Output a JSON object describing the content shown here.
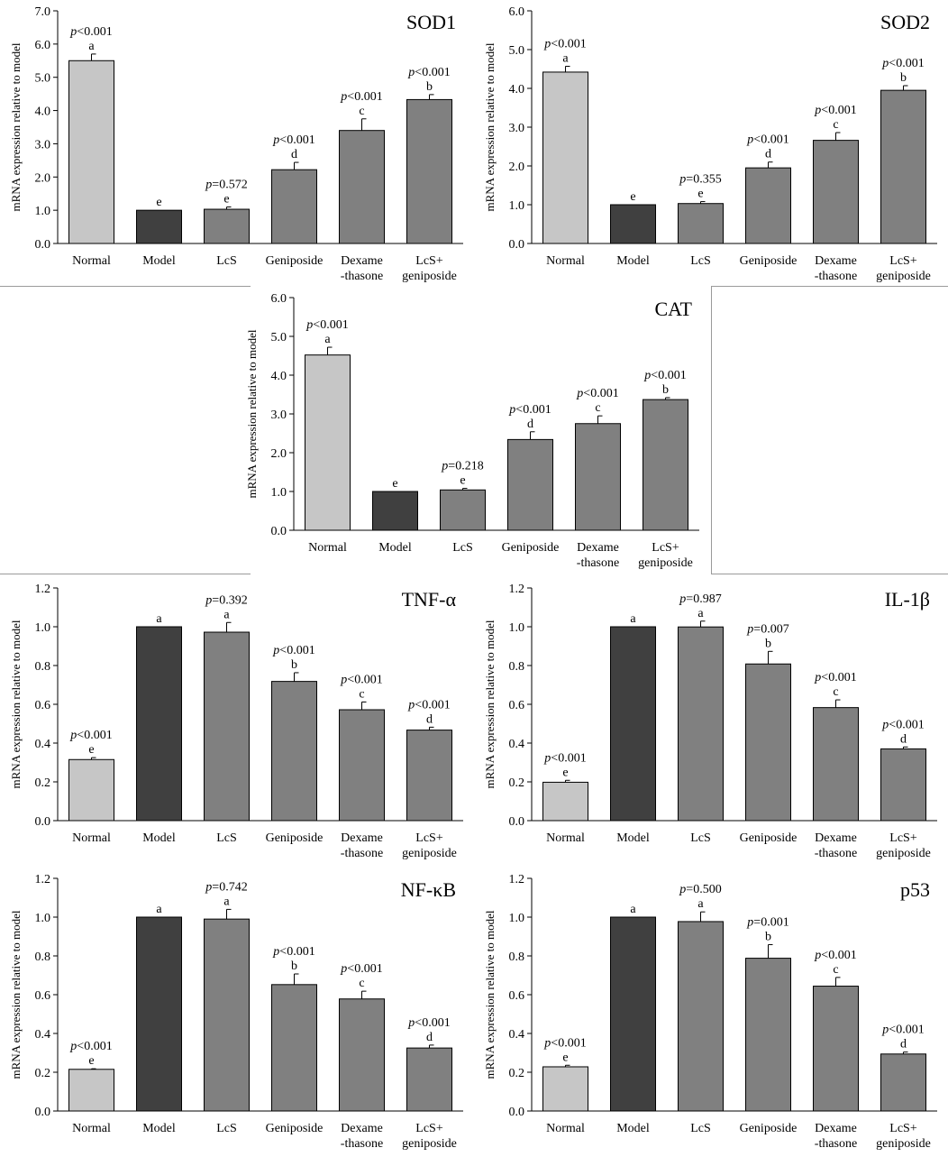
{
  "figure": {
    "categories_line1": [
      "Normal",
      "Model",
      "LcS",
      "Geniposide",
      "Dexame",
      "LcS+"
    ],
    "categories_line2": [
      "",
      "",
      "",
      "",
      "-thasone",
      "geniposide"
    ],
    "ylabel": "mRNA expression relative to model",
    "bar_colors": [
      "#c6c6c6",
      "#404040",
      "#808080",
      "#808080",
      "#808080",
      "#808080"
    ]
  },
  "chart_data": [
    {
      "type": "bar",
      "title": "SOD1",
      "ylabel": "mRNA expression relative to model",
      "categories": [
        "Normal",
        "Model",
        "LcS",
        "Geniposide",
        "Dexame -thasone",
        "LcS+ geniposide"
      ],
      "ylim": [
        0,
        7.0
      ],
      "ticks": [
        "0.0",
        "1.0",
        "2.0",
        "3.0",
        "4.0",
        "5.0",
        "6.0",
        "7.0"
      ],
      "values": [
        5.5,
        1.0,
        1.03,
        2.22,
        3.4,
        4.33
      ],
      "errors": [
        0.2,
        0.0,
        0.07,
        0.22,
        0.35,
        0.15
      ],
      "letters": [
        "a",
        "e",
        "e",
        "d",
        "c",
        "b"
      ],
      "pvalues": [
        "<0.001",
        "",
        "=0.572",
        "<0.001",
        "<0.001",
        "<0.001"
      ]
    },
    {
      "type": "bar",
      "title": "SOD2",
      "ylabel": "mRNA expression relative to model",
      "categories": [
        "Normal",
        "Model",
        "LcS",
        "Geniposide",
        "Dexame -thasone",
        "LcS+ geniposide"
      ],
      "ylim": [
        0,
        6.0
      ],
      "ticks": [
        "0.0",
        "1.0",
        "2.0",
        "3.0",
        "4.0",
        "5.0",
        "6.0"
      ],
      "values": [
        4.42,
        1.0,
        1.03,
        1.95,
        2.66,
        3.95
      ],
      "errors": [
        0.15,
        0.0,
        0.05,
        0.15,
        0.2,
        0.12
      ],
      "letters": [
        "a",
        "e",
        "e",
        "d",
        "c",
        "b"
      ],
      "pvalues": [
        "<0.001",
        "",
        "=0.355",
        "<0.001",
        "<0.001",
        "<0.001"
      ]
    },
    {
      "type": "bar",
      "title": "CAT",
      "ylabel": "mRNA expression relative to model",
      "categories": [
        "Normal",
        "Model",
        "LcS",
        "Geniposide",
        "Dexame -thasone",
        "LcS+ geniposide"
      ],
      "ylim": [
        0,
        6.0
      ],
      "ticks": [
        "0.0",
        "1.0",
        "2.0",
        "3.0",
        "4.0",
        "5.0",
        "6.0"
      ],
      "values": [
        4.52,
        1.0,
        1.04,
        2.34,
        2.75,
        3.37
      ],
      "errors": [
        0.2,
        0.0,
        0.04,
        0.2,
        0.2,
        0.05
      ],
      "letters": [
        "a",
        "e",
        "e",
        "d",
        "c",
        "b"
      ],
      "pvalues": [
        "<0.001",
        "",
        "=0.218",
        "<0.001",
        "<0.001",
        "<0.001"
      ]
    },
    {
      "type": "bar",
      "title": "TNF-α",
      "ylabel": "mRNA expression relative to model",
      "categories": [
        "Normal",
        "Model",
        "LcS",
        "Geniposide",
        "Dexame -thasone",
        "LcS+ geniposide"
      ],
      "ylim": [
        0,
        1.2
      ],
      "ticks": [
        "0.0",
        "0.2",
        "0.4",
        "0.6",
        "0.8",
        "1.0",
        "1.2"
      ],
      "values": [
        0.315,
        1.0,
        0.972,
        0.718,
        0.572,
        0.467
      ],
      "errors": [
        0.01,
        0.0,
        0.05,
        0.045,
        0.04,
        0.015
      ],
      "letters": [
        "e",
        "a",
        "a",
        "b",
        "c",
        "d"
      ],
      "pvalues": [
        "<0.001",
        "",
        "=0.392",
        "<0.001",
        "<0.001",
        "<0.001"
      ]
    },
    {
      "type": "bar",
      "title": "IL-1β",
      "ylabel": "mRNA expression relative to model",
      "categories": [
        "Normal",
        "Model",
        "LcS",
        "Geniposide",
        "Dexame -thasone",
        "LcS+ geniposide"
      ],
      "ylim": [
        0,
        1.2
      ],
      "ticks": [
        "0.0",
        "0.2",
        "0.4",
        "0.6",
        "0.8",
        "1.0",
        "1.2"
      ],
      "values": [
        0.198,
        1.0,
        0.999,
        0.808,
        0.583,
        0.37
      ],
      "errors": [
        0.01,
        0.0,
        0.03,
        0.065,
        0.04,
        0.01
      ],
      "letters": [
        "e",
        "a",
        "a",
        "b",
        "c",
        "d"
      ],
      "pvalues": [
        "<0.001",
        "",
        "=0.987",
        "=0.007",
        "<0.001",
        "<0.001"
      ]
    },
    {
      "type": "bar",
      "title": "NF-κB",
      "ylabel": "mRNA expression relative to model",
      "categories": [
        "Normal",
        "Model",
        "LcS",
        "Geniposide",
        "Dexame -thasone",
        "LcS+ geniposide"
      ],
      "ylim": [
        0,
        1.2
      ],
      "ticks": [
        "0.0",
        "0.2",
        "0.4",
        "0.6",
        "0.8",
        "1.0",
        "1.2"
      ],
      "values": [
        0.215,
        1.0,
        0.99,
        0.652,
        0.578,
        0.325
      ],
      "errors": [
        0.003,
        0.0,
        0.05,
        0.055,
        0.04,
        0.015
      ],
      "letters": [
        "e",
        "a",
        "a",
        "b",
        "c",
        "d"
      ],
      "pvalues": [
        "<0.001",
        "",
        "=0.742",
        "<0.001",
        "<0.001",
        "<0.001"
      ]
    },
    {
      "type": "bar",
      "title": "p53",
      "ylabel": "mRNA expression relative to model",
      "categories": [
        "Normal",
        "Model",
        "LcS",
        "Geniposide",
        "Dexame -thasone",
        "LcS+ geniposide"
      ],
      "ylim": [
        0,
        1.2
      ],
      "ticks": [
        "0.0",
        "0.2",
        "0.4",
        "0.6",
        "0.8",
        "1.0",
        "1.2"
      ],
      "values": [
        0.228,
        1.0,
        0.977,
        0.788,
        0.644,
        0.294
      ],
      "errors": [
        0.008,
        0.0,
        0.05,
        0.07,
        0.045,
        0.01
      ],
      "letters": [
        "e",
        "a",
        "a",
        "b",
        "c",
        "d"
      ],
      "pvalues": [
        "<0.001",
        "",
        "=0.500",
        "=0.001",
        "<0.001",
        "<0.001"
      ]
    }
  ]
}
